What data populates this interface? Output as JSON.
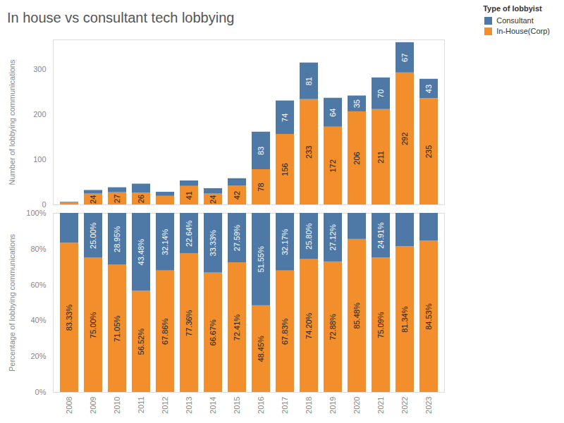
{
  "title": "In house vs consultant tech lobbying",
  "legend_title": "Type of lobbyist",
  "chart_data": [
    {
      "type": "bar",
      "stacked": true,
      "data_labels": true,
      "legend": "top-right",
      "tick_labels": "y",
      "ylabel": "Number of lobbying communications",
      "categories": [
        "2008",
        "2009",
        "2010",
        "2011",
        "2012",
        "2013",
        "2014",
        "2015",
        "2016",
        "2017",
        "2018",
        "2019",
        "2020",
        "2021",
        "2022",
        "2023"
      ],
      "ylim": [
        0,
        365
      ],
      "yticks": [
        0,
        100,
        200,
        300
      ],
      "series": [
        {
          "name": "Consultant",
          "color": "#4e79a7",
          "values": [
            1,
            8,
            11,
            20,
            9,
            12,
            12,
            16,
            83,
            74,
            81,
            64,
            35,
            70,
            67,
            43
          ],
          "value_labels": [
            null,
            null,
            null,
            null,
            null,
            null,
            null,
            null,
            "83",
            "74",
            "81",
            "64",
            "35",
            "70",
            "67",
            "43"
          ]
        },
        {
          "name": "In-House(Corp)",
          "color": "#f28e2b",
          "values": [
            5,
            24,
            27,
            26,
            19,
            41,
            24,
            42,
            78,
            156,
            233,
            172,
            206,
            211,
            292,
            235
          ],
          "value_labels": [
            null,
            "24",
            "27",
            "26",
            null,
            "41",
            "24",
            "42",
            "78",
            "156",
            "233",
            "172",
            "206",
            "211",
            "292",
            "235"
          ]
        }
      ]
    },
    {
      "type": "bar",
      "stacked": true,
      "data_labels": true,
      "ylabel": "Percentage of lobbying communications",
      "categories": [
        "2008",
        "2009",
        "2010",
        "2011",
        "2012",
        "2013",
        "2014",
        "2015",
        "2016",
        "2017",
        "2018",
        "2019",
        "2020",
        "2021",
        "2022",
        "2023"
      ],
      "ylim": [
        0,
        100
      ],
      "yticks": [
        {
          "value": 0,
          "label": "0%"
        },
        {
          "value": 20,
          "label": "20%"
        },
        {
          "value": 40,
          "label": "40%"
        },
        {
          "value": 60,
          "label": "60%"
        },
        {
          "value": 80,
          "label": "80%"
        },
        {
          "value": 100,
          "label": "100%"
        }
      ],
      "series": [
        {
          "name": "Consultant",
          "color": "#4e79a7",
          "values": [
            16.67,
            25.0,
            28.95,
            43.48,
            32.14,
            22.64,
            33.33,
            27.59,
            51.55,
            32.17,
            25.8,
            27.12,
            14.52,
            24.91,
            18.66,
            15.47
          ],
          "value_labels": [
            null,
            "25.00%",
            "28.95%",
            "43.48%",
            "32.14%",
            "22.64%",
            "33.33%",
            "27.59%",
            "51.55%",
            "32.17%",
            "25.80%",
            "27.12%",
            null,
            "24.91%",
            null,
            null
          ]
        },
        {
          "name": "In-House(Corp)",
          "color": "#f28e2b",
          "values": [
            83.33,
            75.0,
            71.05,
            56.52,
            67.86,
            77.36,
            66.67,
            72.41,
            48.45,
            67.83,
            74.2,
            72.88,
            85.48,
            75.09,
            81.34,
            84.53
          ],
          "value_labels": [
            "83.33%",
            "75.00%",
            "71.05%",
            "56.52%",
            "67.86%",
            "77.36%",
            "66.67%",
            "72.41%",
            "48.45%",
            "67.83%",
            "74.20%",
            "72.88%",
            "85.48%",
            "75.09%",
            "81.34%",
            "84.53%"
          ]
        }
      ]
    }
  ]
}
